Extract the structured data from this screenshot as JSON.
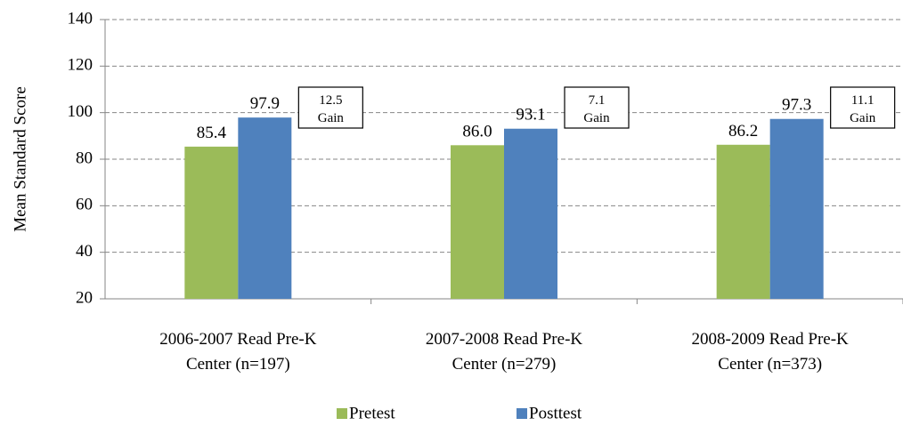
{
  "chart_data": {
    "type": "bar",
    "ylabel": "Mean Standard Score",
    "categories": [
      "2006-2007 Read Pre-K\nCenter (n=197)",
      "2007-2008 Read Pre-K\nCenter (n=279)",
      "2008-2009 Read Pre-K\nCenter (n=373)"
    ],
    "series": [
      {
        "name": "Pretest",
        "color": "#9bbb59",
        "values": [
          85.4,
          86.0,
          86.2
        ],
        "value_labels": [
          "85.4",
          "86.0",
          "86.2"
        ]
      },
      {
        "name": "Posttest",
        "color": "#4f81bd",
        "values": [
          97.9,
          93.1,
          97.3
        ],
        "value_labels": [
          "97.9",
          "93.1",
          "97.3"
        ]
      }
    ],
    "annotations": [
      "12.5\nGain",
      "7.1\nGain",
      "11.1\nGain"
    ],
    "ylim": [
      20,
      140
    ],
    "yticks": [
      20,
      40,
      60,
      80,
      100,
      120,
      140
    ],
    "grid": true,
    "legend": "bottom"
  }
}
